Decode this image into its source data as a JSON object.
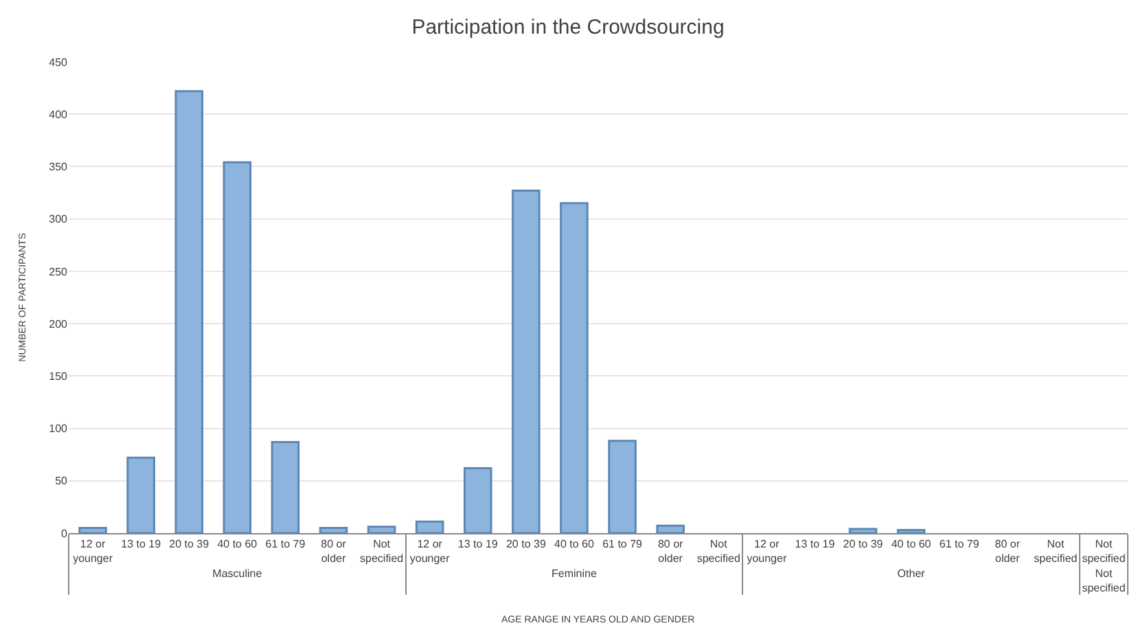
{
  "chart_data": {
    "type": "bar",
    "title": "Participation in the Crowdsourcing",
    "annotations": [
      "AGE RANGE IN YEARS OLD AND GENDER"
    ],
    "ylabel": "NUMBER OF PARTICIPANTS",
    "categories": [
      [
        "Masculine",
        "12 or younger"
      ],
      [
        null,
        "13 to 19"
      ],
      [
        null,
        "20 to 39"
      ],
      [
        null,
        "40 to 60"
      ],
      [
        null,
        "61 to 79"
      ],
      [
        null,
        "80 or older"
      ],
      [
        null,
        "Not specified"
      ],
      [
        "Feminine",
        "12 or younger"
      ],
      [
        null,
        "13 to 19"
      ],
      [
        null,
        "20 to 39"
      ],
      [
        null,
        "40 to 60"
      ],
      [
        null,
        "61 to 79"
      ],
      [
        null,
        "80 or older"
      ],
      [
        null,
        "Not specified"
      ],
      [
        "Other",
        "12 or younger"
      ],
      [
        null,
        "13 to 19"
      ],
      [
        null,
        "20 to 39"
      ],
      [
        null,
        "40 to 60"
      ],
      [
        null,
        "61 to 79"
      ],
      [
        null,
        "80 or older"
      ],
      [
        null,
        "Not specified"
      ],
      [
        "Not specified",
        "Not specified"
      ]
    ],
    "values": [
      5,
      72,
      422,
      354,
      87,
      5,
      6,
      11,
      62,
      327,
      315,
      88,
      7,
      0,
      0,
      0,
      4,
      3,
      0,
      0,
      0,
      0
    ],
    "color": "#8cb4dd",
    "ylim": [
      0,
      450
    ],
    "yticks": [
      0,
      50,
      100,
      150,
      200,
      250,
      300,
      350,
      400,
      450
    ],
    "grid": "y",
    "legend": false
  }
}
